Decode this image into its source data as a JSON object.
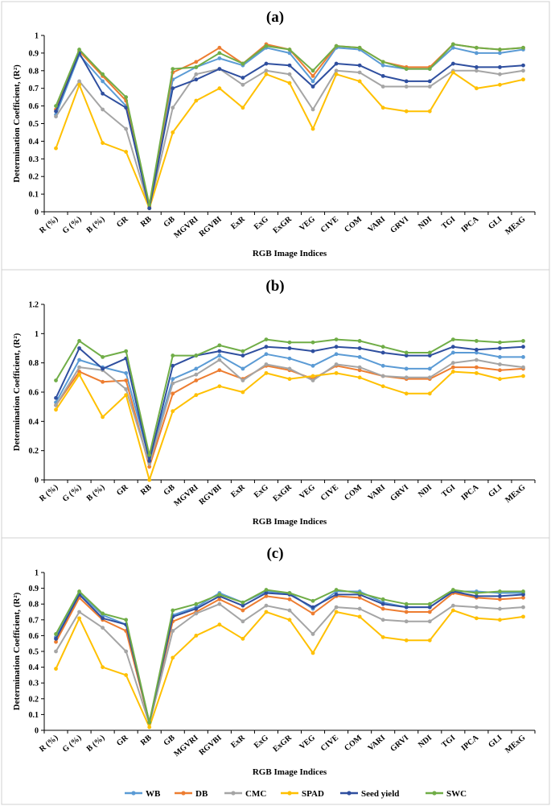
{
  "figure": {
    "legend": [
      {
        "key": "wb",
        "label": "WB"
      },
      {
        "key": "db",
        "label": "DB"
      },
      {
        "key": "cmc",
        "label": "CMC"
      },
      {
        "key": "spad",
        "label": "SPAD"
      },
      {
        "key": "seed",
        "label": "Seed yield"
      },
      {
        "key": "swc",
        "label": "SWC"
      }
    ]
  },
  "colors": {
    "WB": "#5b9bd5",
    "DB": "#ed7d31",
    "CMC": "#a5a5a5",
    "SPAD": "#ffc000",
    "Seed yield": "#2f4f9f",
    "SWC": "#70ad47",
    "frame": "#d0d0d0"
  },
  "chart_data": [
    {
      "type": "line",
      "title": "(a)",
      "xlabel": "RGB Image Indices",
      "ylabel": "Determination Coefficient, (R²)",
      "ylim": [
        0,
        1
      ],
      "yticks": [
        "0",
        "0.1",
        "0.2",
        "0.3",
        "0.4",
        "0.5",
        "0.6",
        "0.7",
        "0.8",
        "0.9",
        "1"
      ],
      "grid": false,
      "categories": [
        "R (%)",
        "G (%)",
        "B (%)",
        "GR",
        "RB",
        "GB",
        "MGVRI",
        "RGVBI",
        "ExR",
        "ExG",
        "ExGR",
        "VEG",
        "CIVE",
        "COM",
        "VARI",
        "GRVI",
        "NDI",
        "TGI",
        "IPCA",
        "GLI",
        "MExG"
      ],
      "series": [
        {
          "name": "WB",
          "values": [
            0.55,
            0.89,
            0.74,
            0.6,
            0.02,
            0.75,
            0.82,
            0.87,
            0.83,
            0.93,
            0.9,
            0.74,
            0.93,
            0.92,
            0.83,
            0.81,
            0.81,
            0.93,
            0.9,
            0.9,
            0.92
          ]
        },
        {
          "name": "DB",
          "values": [
            0.58,
            0.91,
            0.77,
            0.63,
            0.03,
            0.79,
            0.85,
            0.93,
            0.84,
            0.95,
            0.92,
            0.77,
            0.94,
            0.93,
            0.85,
            0.82,
            0.82,
            0.95,
            0.93,
            0.92,
            0.93
          ]
        },
        {
          "name": "CMC",
          "values": [
            0.54,
            0.74,
            0.58,
            0.47,
            0.02,
            0.59,
            0.78,
            0.81,
            0.72,
            0.8,
            0.78,
            0.58,
            0.8,
            0.79,
            0.71,
            0.71,
            0.71,
            0.8,
            0.8,
            0.78,
            0.8
          ]
        },
        {
          "name": "SPAD",
          "values": [
            0.36,
            0.72,
            0.39,
            0.34,
            0.02,
            0.45,
            0.63,
            0.7,
            0.59,
            0.78,
            0.73,
            0.47,
            0.78,
            0.74,
            0.59,
            0.57,
            0.57,
            0.79,
            0.7,
            0.72,
            0.75
          ]
        },
        {
          "name": "Seed yield",
          "values": [
            0.57,
            0.9,
            0.67,
            0.59,
            0.02,
            0.7,
            0.75,
            0.81,
            0.76,
            0.84,
            0.83,
            0.71,
            0.84,
            0.83,
            0.77,
            0.74,
            0.74,
            0.84,
            0.82,
            0.82,
            0.83
          ]
        },
        {
          "name": "SWC",
          "values": [
            0.6,
            0.92,
            0.78,
            0.65,
            0.04,
            0.81,
            0.82,
            0.9,
            0.84,
            0.94,
            0.92,
            0.8,
            0.94,
            0.93,
            0.85,
            0.81,
            0.81,
            0.95,
            0.93,
            0.92,
            0.93
          ]
        }
      ]
    },
    {
      "type": "line",
      "title": "(b)",
      "xlabel": "RGB Image Indices",
      "ylabel": "Determination Coefficient, (R²)",
      "ylim": [
        0,
        1.2
      ],
      "yticks": [
        "0",
        "0.2",
        "0.4",
        "0.6",
        "0.8",
        "1",
        "1.2"
      ],
      "grid": false,
      "categories": [
        "R (%)",
        "G (%)",
        "B (%)",
        "GR",
        "RB",
        "GB",
        "MGVRI",
        "RGVBI",
        "ExR",
        "ExG",
        "ExGR",
        "VEG",
        "CIVE",
        "COM",
        "VARI",
        "GRVI",
        "NDI",
        "TGI",
        "IPCA",
        "GLI",
        "MExG"
      ],
      "series": [
        {
          "name": "WB",
          "values": [
            0.53,
            0.82,
            0.77,
            0.73,
            0.14,
            0.69,
            0.76,
            0.85,
            0.76,
            0.86,
            0.83,
            0.78,
            0.86,
            0.84,
            0.78,
            0.76,
            0.76,
            0.87,
            0.87,
            0.84,
            0.84
          ]
        },
        {
          "name": "DB",
          "values": [
            0.51,
            0.74,
            0.67,
            0.68,
            0.09,
            0.59,
            0.68,
            0.75,
            0.69,
            0.78,
            0.75,
            0.69,
            0.78,
            0.75,
            0.71,
            0.69,
            0.69,
            0.77,
            0.77,
            0.75,
            0.76
          ]
        },
        {
          "name": "CMC",
          "values": [
            0.51,
            0.77,
            0.75,
            0.62,
            0.11,
            0.66,
            0.72,
            0.82,
            0.68,
            0.79,
            0.76,
            0.68,
            0.79,
            0.77,
            0.71,
            0.7,
            0.7,
            0.8,
            0.82,
            0.79,
            0.77
          ]
        },
        {
          "name": "SPAD",
          "values": [
            0.48,
            0.72,
            0.43,
            0.58,
            0.0,
            0.47,
            0.58,
            0.64,
            0.6,
            0.73,
            0.69,
            0.71,
            0.73,
            0.7,
            0.64,
            0.59,
            0.59,
            0.74,
            0.73,
            0.69,
            0.71
          ]
        },
        {
          "name": "Seed yield",
          "values": [
            0.56,
            0.9,
            0.76,
            0.83,
            0.13,
            0.78,
            0.85,
            0.88,
            0.85,
            0.91,
            0.9,
            0.88,
            0.91,
            0.9,
            0.87,
            0.85,
            0.85,
            0.91,
            0.89,
            0.9,
            0.91
          ]
        },
        {
          "name": "SWC",
          "values": [
            0.68,
            0.95,
            0.84,
            0.88,
            0.17,
            0.85,
            0.85,
            0.92,
            0.88,
            0.96,
            0.94,
            0.94,
            0.96,
            0.95,
            0.91,
            0.87,
            0.87,
            0.96,
            0.95,
            0.94,
            0.95
          ]
        }
      ]
    },
    {
      "type": "line",
      "title": "(c)",
      "xlabel": "RGB Image Indices",
      "ylabel": "Determination Coefficient, (R²)",
      "ylim": [
        0,
        1
      ],
      "yticks": [
        "0",
        "0.1",
        "0.2",
        "0.3",
        "0.4",
        "0.5",
        "0.6",
        "0.7",
        "0.8",
        "0.9",
        "1"
      ],
      "grid": false,
      "categories": [
        "R (%)",
        "G (%)",
        "B (%)",
        "GR",
        "RB",
        "GB",
        "MGVRI",
        "RGVBI",
        "ExR",
        "ExG",
        "ExGR",
        "VEG",
        "CIVE",
        "COM",
        "VARI",
        "GRVI",
        "NDI",
        "TGI",
        "IPCA",
        "GLI",
        "MExG"
      ],
      "series": [
        {
          "name": "WB",
          "values": [
            0.59,
            0.87,
            0.73,
            0.67,
            0.05,
            0.73,
            0.78,
            0.87,
            0.81,
            0.88,
            0.87,
            0.77,
            0.88,
            0.88,
            0.81,
            0.78,
            0.78,
            0.88,
            0.88,
            0.87,
            0.87
          ]
        },
        {
          "name": "DB",
          "values": [
            0.56,
            0.84,
            0.7,
            0.63,
            0.05,
            0.69,
            0.75,
            0.83,
            0.76,
            0.85,
            0.83,
            0.74,
            0.85,
            0.84,
            0.77,
            0.75,
            0.75,
            0.87,
            0.84,
            0.83,
            0.84
          ]
        },
        {
          "name": "CMC",
          "values": [
            0.5,
            0.75,
            0.65,
            0.5,
            0.04,
            0.63,
            0.74,
            0.8,
            0.69,
            0.79,
            0.76,
            0.61,
            0.78,
            0.77,
            0.7,
            0.69,
            0.69,
            0.79,
            0.78,
            0.77,
            0.78
          ]
        },
        {
          "name": "SPAD",
          "values": [
            0.39,
            0.71,
            0.4,
            0.35,
            0.02,
            0.46,
            0.6,
            0.67,
            0.58,
            0.75,
            0.7,
            0.49,
            0.75,
            0.72,
            0.59,
            0.57,
            0.57,
            0.76,
            0.71,
            0.7,
            0.72
          ]
        },
        {
          "name": "Seed yield",
          "values": [
            0.58,
            0.86,
            0.71,
            0.67,
            0.05,
            0.72,
            0.77,
            0.85,
            0.79,
            0.87,
            0.86,
            0.78,
            0.86,
            0.86,
            0.8,
            0.78,
            0.78,
            0.88,
            0.85,
            0.85,
            0.86
          ]
        },
        {
          "name": "SWC",
          "values": [
            0.61,
            0.88,
            0.74,
            0.7,
            0.05,
            0.76,
            0.8,
            0.86,
            0.81,
            0.89,
            0.87,
            0.82,
            0.89,
            0.87,
            0.83,
            0.8,
            0.8,
            0.89,
            0.87,
            0.88,
            0.88
          ]
        }
      ]
    }
  ]
}
